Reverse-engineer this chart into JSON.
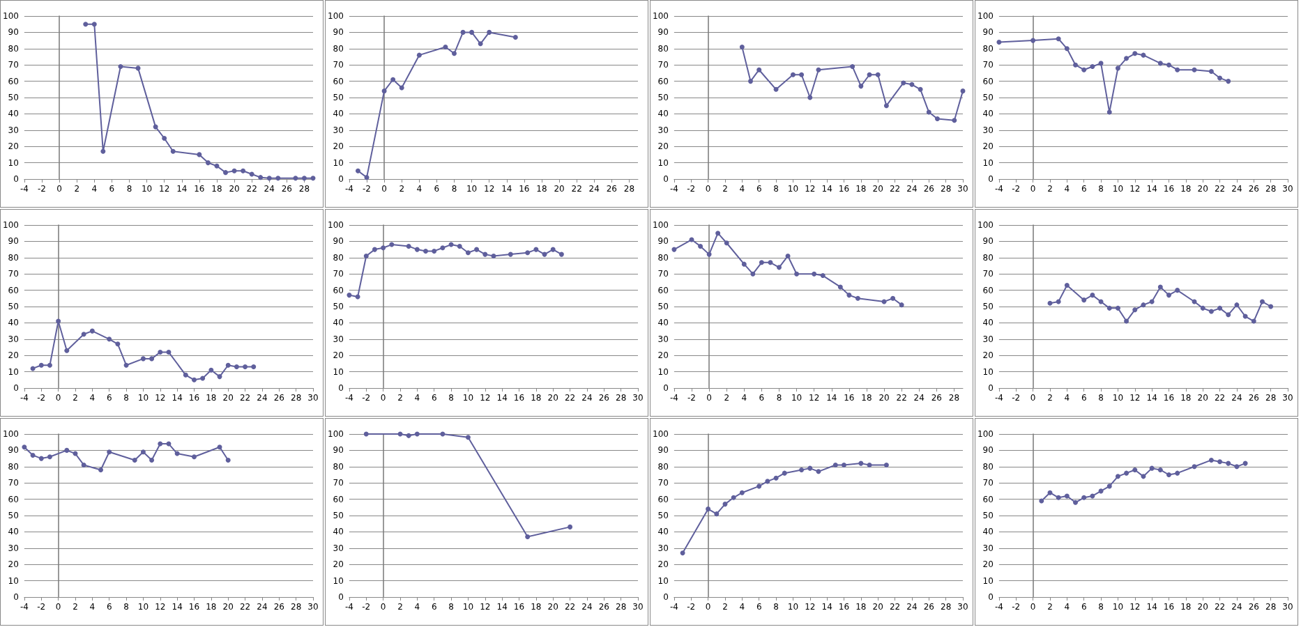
{
  "chart_data": [
    {
      "type": "line",
      "color": "#5f5f9c",
      "marker": "circle",
      "grid": "y",
      "xlim": [
        -4,
        29
      ],
      "xticks": [
        -4,
        -2,
        0,
        2,
        4,
        6,
        8,
        10,
        12,
        14,
        16,
        18,
        20,
        22,
        24,
        26,
        28
      ],
      "ylim": [
        0,
        100
      ],
      "yticks": [
        0,
        10,
        20,
        30,
        40,
        50,
        60,
        70,
        80,
        90,
        100
      ],
      "x": [
        3,
        4,
        5,
        7,
        9,
        11,
        12,
        13,
        16,
        17,
        18,
        19,
        20,
        21,
        22,
        23,
        24,
        25,
        27,
        28,
        29
      ],
      "values": [
        95,
        95,
        17,
        69,
        68,
        32,
        25,
        17,
        15,
        10,
        8,
        4,
        5,
        5,
        3,
        1,
        0.5,
        0.5,
        0.5,
        0.5,
        0.5
      ]
    },
    {
      "type": "line",
      "color": "#5f5f9c",
      "marker": "circle",
      "grid": "y",
      "xlim": [
        -4,
        29
      ],
      "xticks": [
        -4,
        -2,
        0,
        2,
        4,
        6,
        8,
        10,
        12,
        14,
        16,
        18,
        20,
        22,
        24,
        26,
        28
      ],
      "ylim": [
        0,
        100
      ],
      "yticks": [
        0,
        10,
        20,
        30,
        40,
        50,
        60,
        70,
        80,
        90,
        100
      ],
      "x": [
        -3,
        -2,
        0,
        1,
        2,
        4,
        7,
        8,
        9,
        10,
        11,
        12,
        15
      ],
      "values": [
        5,
        1,
        54,
        61,
        56,
        76,
        81,
        77,
        90,
        90,
        83,
        90,
        87
      ]
    },
    {
      "type": "line",
      "color": "#5f5f9c",
      "marker": "circle",
      "grid": "y",
      "xlim": [
        -4,
        30
      ],
      "xticks": [
        -4,
        -2,
        0,
        2,
        4,
        6,
        8,
        10,
        12,
        14,
        16,
        18,
        20,
        22,
        24,
        26,
        28,
        30
      ],
      "ylim": [
        0,
        100
      ],
      "yticks": [
        0,
        10,
        20,
        30,
        40,
        50,
        60,
        70,
        80,
        90,
        100
      ],
      "x": [
        4,
        5,
        6,
        8,
        10,
        11,
        12,
        13,
        17,
        18,
        19,
        20,
        21,
        23,
        24,
        25,
        26,
        27,
        29,
        30
      ],
      "values": [
        81,
        60,
        67,
        55,
        64,
        64,
        50,
        67,
        69,
        57,
        64,
        64,
        45,
        59,
        58,
        55,
        41,
        37,
        36,
        54
      ]
    },
    {
      "type": "line",
      "color": "#5f5f9c",
      "marker": "circle",
      "grid": "y",
      "xlim": [
        -4,
        30
      ],
      "xticks": [
        -4,
        -2,
        0,
        2,
        4,
        6,
        8,
        10,
        12,
        14,
        16,
        18,
        20,
        22,
        24,
        26,
        28,
        30
      ],
      "ylim": [
        0,
        100
      ],
      "yticks": [
        0,
        10,
        20,
        30,
        40,
        50,
        60,
        70,
        80,
        90,
        100
      ],
      "x": [
        -4,
        0,
        3,
        4,
        5,
        6,
        7,
        8,
        9,
        10,
        11,
        12,
        13,
        15,
        16,
        17,
        19,
        21,
        22,
        23
      ],
      "values": [
        84,
        85,
        86,
        80,
        70,
        67,
        69,
        71,
        41,
        68,
        74,
        77,
        76,
        71,
        70,
        67,
        67,
        66,
        62,
        60
      ]
    },
    {
      "type": "line",
      "color": "#5f5f9c",
      "marker": "circle",
      "grid": "y",
      "xlim": [
        -4,
        30
      ],
      "xticks": [
        -4,
        -2,
        0,
        2,
        4,
        6,
        8,
        10,
        12,
        14,
        16,
        18,
        20,
        22,
        24,
        26,
        28,
        30
      ],
      "ylim": [
        0,
        100
      ],
      "yticks": [
        0,
        10,
        20,
        30,
        40,
        50,
        60,
        70,
        80,
        90,
        100
      ],
      "x": [
        -3,
        -2,
        -1,
        0,
        1,
        3,
        4,
        6,
        7,
        8,
        10,
        11,
        12,
        13,
        15,
        16,
        17,
        18,
        19,
        20,
        21,
        22,
        23
      ],
      "values": [
        12,
        14,
        14,
        41,
        23,
        33,
        35,
        30,
        27,
        14,
        18,
        18,
        22,
        22,
        8,
        5,
        6,
        11,
        7,
        14,
        13,
        13,
        13
      ]
    },
    {
      "type": "line",
      "color": "#5f5f9c",
      "marker": "circle",
      "grid": "y",
      "xlim": [
        -4,
        30
      ],
      "xticks": [
        -4,
        -2,
        0,
        2,
        4,
        6,
        8,
        10,
        12,
        14,
        16,
        18,
        20,
        22,
        24,
        26,
        28,
        30
      ],
      "ylim": [
        0,
        100
      ],
      "yticks": [
        0,
        10,
        20,
        30,
        40,
        50,
        60,
        70,
        80,
        90,
        100
      ],
      "x": [
        -4,
        -3,
        -2,
        -1,
        0,
        1,
        3,
        4,
        5,
        6,
        7,
        8,
        9,
        10,
        11,
        12,
        13,
        15,
        17,
        18,
        19,
        20,
        21
      ],
      "values": [
        57,
        56,
        81,
        85,
        86,
        88,
        87,
        85,
        84,
        84,
        86,
        88,
        87,
        83,
        85,
        82,
        81,
        82,
        83,
        85,
        82,
        85,
        82
      ]
    },
    {
      "type": "line",
      "color": "#5f5f9c",
      "marker": "circle",
      "grid": "y",
      "xlim": [
        -4,
        29
      ],
      "xticks": [
        -4,
        -2,
        0,
        2,
        4,
        6,
        8,
        10,
        12,
        14,
        16,
        18,
        20,
        22,
        24,
        26,
        28
      ],
      "ylim": [
        0,
        100
      ],
      "yticks": [
        0,
        10,
        20,
        30,
        40,
        50,
        60,
        70,
        80,
        90,
        100
      ],
      "x": [
        -4,
        -2,
        -1,
        0,
        1,
        2,
        4,
        5,
        6,
        7,
        8,
        9,
        10,
        12,
        13,
        15,
        16,
        17,
        20,
        21,
        22
      ],
      "values": [
        85,
        91,
        87,
        82,
        95,
        89,
        76,
        70,
        77,
        77,
        74,
        81,
        70,
        70,
        69,
        62,
        57,
        55,
        53,
        55,
        51
      ]
    },
    {
      "type": "line",
      "color": "#5f5f9c",
      "marker": "circle",
      "grid": "y",
      "xlim": [
        -4,
        30
      ],
      "xticks": [
        -4,
        -2,
        0,
        2,
        4,
        6,
        8,
        10,
        12,
        14,
        16,
        18,
        20,
        22,
        24,
        26,
        28,
        30
      ],
      "ylim": [
        0,
        100
      ],
      "yticks": [
        0,
        10,
        20,
        30,
        40,
        50,
        60,
        70,
        80,
        90,
        100
      ],
      "x": [
        2,
        3,
        4,
        6,
        7,
        8,
        9,
        10,
        11,
        12,
        13,
        14,
        15,
        16,
        17,
        19,
        20,
        21,
        22,
        23,
        24,
        25,
        26,
        27,
        28
      ],
      "values": [
        52,
        53,
        63,
        54,
        57,
        53,
        49,
        49,
        41,
        48,
        51,
        53,
        62,
        57,
        60,
        53,
        49,
        47,
        49,
        45,
        51,
        44,
        41,
        53,
        50
      ]
    },
    {
      "type": "line",
      "color": "#5f5f9c",
      "marker": "circle",
      "grid": "y",
      "xlim": [
        -4,
        30
      ],
      "xticks": [
        -4,
        -2,
        0,
        2,
        4,
        6,
        8,
        10,
        12,
        14,
        16,
        18,
        20,
        22,
        24,
        26,
        28,
        30
      ],
      "ylim": [
        0,
        100
      ],
      "yticks": [
        0,
        10,
        20,
        30,
        40,
        50,
        60,
        70,
        80,
        90,
        100
      ],
      "x": [
        -4,
        -3,
        -2,
        -1,
        1,
        2,
        3,
        5,
        6,
        9,
        10,
        11,
        12,
        13,
        14,
        16,
        19,
        20
      ],
      "values": [
        92,
        87,
        85,
        86,
        90,
        88,
        81,
        78,
        89,
        84,
        89,
        84,
        94,
        94,
        88,
        86,
        92,
        84
      ]
    },
    {
      "type": "line",
      "color": "#5f5f9c",
      "marker": "circle",
      "grid": "y",
      "xlim": [
        -4,
        30
      ],
      "xticks": [
        -4,
        -2,
        0,
        2,
        4,
        6,
        8,
        10,
        12,
        14,
        16,
        18,
        20,
        22,
        24,
        26,
        28,
        30
      ],
      "ylim": [
        0,
        100
      ],
      "yticks": [
        0,
        10,
        20,
        30,
        40,
        50,
        60,
        70,
        80,
        90,
        100
      ],
      "x": [
        -2,
        2,
        3,
        4,
        7,
        10,
        17,
        22
      ],
      "values": [
        100,
        100,
        99,
        100,
        100,
        98,
        37,
        43
      ]
    },
    {
      "type": "line",
      "color": "#5f5f9c",
      "marker": "circle",
      "grid": "y",
      "xlim": [
        -4,
        30
      ],
      "xticks": [
        -4,
        -2,
        0,
        2,
        4,
        6,
        8,
        10,
        12,
        14,
        16,
        18,
        20,
        22,
        24,
        26,
        28,
        30
      ],
      "ylim": [
        0,
        100
      ],
      "yticks": [
        0,
        10,
        20,
        30,
        40,
        50,
        60,
        70,
        80,
        90,
        100
      ],
      "x": [
        -3,
        0,
        1,
        2,
        3,
        4,
        6,
        7,
        8,
        9,
        11,
        12,
        13,
        15,
        16,
        18,
        19,
        21
      ],
      "values": [
        27,
        54,
        51,
        57,
        61,
        64,
        68,
        71,
        73,
        76,
        78,
        79,
        77,
        81,
        81,
        82,
        81,
        81
      ]
    },
    {
      "type": "line",
      "color": "#5f5f9c",
      "marker": "circle",
      "grid": "y",
      "xlim": [
        -4,
        30
      ],
      "xticks": [
        -4,
        -2,
        0,
        2,
        4,
        6,
        8,
        10,
        12,
        14,
        16,
        18,
        20,
        22,
        24,
        26,
        28,
        30
      ],
      "ylim": [
        0,
        100
      ],
      "yticks": [
        0,
        10,
        20,
        30,
        40,
        50,
        60,
        70,
        80,
        90,
        100
      ],
      "x": [
        1,
        2,
        3,
        4,
        5,
        6,
        7,
        8,
        9,
        10,
        11,
        12,
        13,
        14,
        15,
        16,
        17,
        19,
        21,
        22,
        23,
        24,
        25
      ],
      "values": [
        59,
        64,
        61,
        62,
        58,
        61,
        62,
        65,
        68,
        74,
        76,
        78,
        74,
        79,
        78,
        75,
        76,
        80,
        84,
        83,
        82,
        80,
        82
      ]
    }
  ]
}
